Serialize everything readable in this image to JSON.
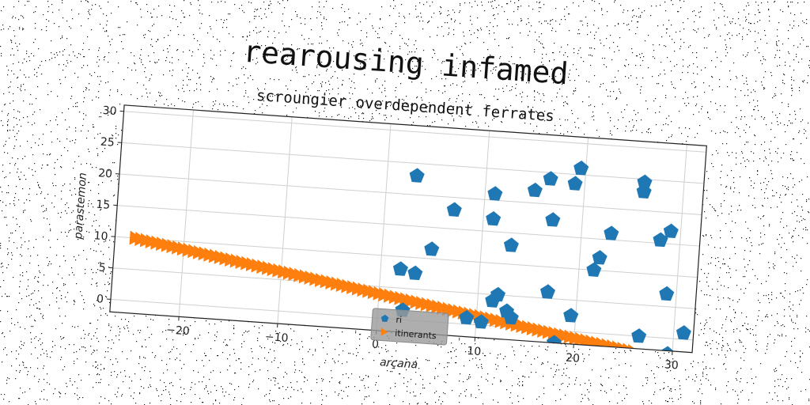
{
  "chart_data": {
    "type": "scatter",
    "title": "rearousing infamed",
    "subtitle": "scroungier overdependent ferrates",
    "xlabel": "arçana",
    "ylabel": "parastemon",
    "xlim": [
      -27,
      32
    ],
    "ylim": [
      -2,
      31
    ],
    "xticks": [
      -20,
      -10,
      0,
      10,
      20,
      30
    ],
    "yticks": [
      0,
      5,
      10,
      15,
      20,
      25,
      30
    ],
    "grid": true,
    "legend_placement": "lower-center",
    "series": [
      {
        "name": "ri",
        "marker": "pentagon",
        "color": "#1f77b4",
        "points": [
          [
            3,
            23
          ],
          [
            2,
            8
          ],
          [
            3.5,
            7.5
          ],
          [
            5,
            11.5
          ],
          [
            7,
            18
          ],
          [
            2.5,
            1.5
          ],
          [
            9,
            1
          ],
          [
            10.5,
            0.5
          ],
          [
            11,
            21
          ],
          [
            11,
            17
          ],
          [
            12,
            5
          ],
          [
            11.5,
            4
          ],
          [
            13,
            13
          ],
          [
            13,
            2.5
          ],
          [
            13.5,
            1.5
          ],
          [
            15,
            22
          ],
          [
            16.5,
            24
          ],
          [
            17,
            17.5
          ],
          [
            17,
            6
          ],
          [
            18,
            -2
          ],
          [
            19,
            23.5
          ],
          [
            19.5,
            26
          ],
          [
            19.5,
            2.5
          ],
          [
            21.5,
            10
          ],
          [
            22,
            12
          ],
          [
            23,
            16
          ],
          [
            26,
            24.5
          ],
          [
            26,
            23
          ],
          [
            26.5,
            0
          ],
          [
            28,
            15.5
          ],
          [
            29,
            17
          ],
          [
            29,
            7
          ],
          [
            29.5,
            -2.5
          ],
          [
            31,
            1
          ]
        ]
      },
      {
        "name": "itinerants",
        "marker": "triangle-right",
        "color": "#ff7f0e",
        "x_range": [
          -25,
          26
        ],
        "y_range": [
          10,
          -2.5
        ],
        "count": 95
      }
    ]
  }
}
